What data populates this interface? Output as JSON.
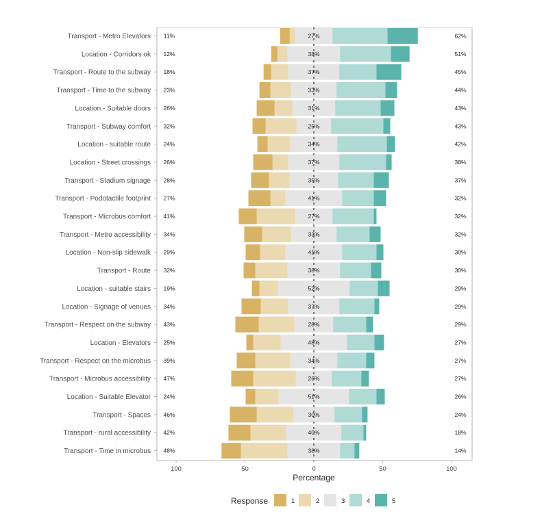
{
  "chart_data": {
    "type": "bar",
    "subtype": "diverging-stacked-likert",
    "title": "",
    "xlabel": "Percentage",
    "ylabel": "",
    "xlim": [
      -100,
      100
    ],
    "x_ticks": [
      -100,
      -50,
      0,
      50,
      100
    ],
    "x_tick_labels": [
      "100",
      "50",
      "0",
      "50",
      "100"
    ],
    "grid": true,
    "legend": {
      "title": "Response",
      "placement": "bottom",
      "entries": [
        "1",
        "2",
        "3",
        "4",
        "5"
      ]
    },
    "colors": {
      "1": "#d9b365",
      "2": "#ebd9b1",
      "3": "#e5e5e5",
      "4": "#afdad6",
      "5": "#5bb4ab"
    },
    "categories": [
      "Transport - Metro Elevators",
      "Location - Corridors ok",
      "Transport - Route to the subway",
      "Transport - Time to the subway",
      "Location - Suitable doors",
      "Transport - Subway comfort",
      "Location - suitable route",
      "Location - Street crossings",
      "Transport - Stadium signage",
      "Transport - Podotactile footprint",
      "Transport - Microbus comfort",
      "Transport - Metro accessibility",
      "Location - Non-slip sidewalk",
      "Transport - Route",
      "Location - suitable stairs",
      "Location - Signage of venues",
      "Transport - Respect on the subway",
      "Location - Elevators",
      "Transport - Respect on the microbus",
      "Transport - Microbus accessibility",
      "Location - Suitable Elevator",
      "Transport - Spaces",
      "Transport - rural accessibility",
      "Transport - Time in microbus"
    ],
    "series": [
      {
        "name": "1",
        "values": [
          7,
          4.5,
          5.5,
          8,
          13,
          9.5,
          7.5,
          14,
          13,
          16,
          13,
          13,
          10.5,
          8.5,
          5.5,
          14,
          17,
          5,
          13.5,
          16,
          7,
          19.5,
          16,
          14
        ]
      },
      {
        "name": "2",
        "values": [
          4,
          7.5,
          12.5,
          15,
          13,
          22.5,
          16.5,
          11.5,
          15,
          11,
          28,
          21,
          18.5,
          23.5,
          13.5,
          20,
          26,
          20,
          25.5,
          31,
          17,
          26.5,
          26,
          34
        ]
      },
      {
        "name": "3",
        "values": [
          27,
          38,
          37,
          33,
          31,
          25,
          34,
          37,
          35,
          41,
          27,
          33,
          41,
          38,
          52,
          37,
          28,
          48,
          34,
          26,
          51,
          30,
          40,
          38
        ]
      },
      {
        "name": "4",
        "values": [
          40,
          37,
          27,
          35.5,
          33,
          38,
          36,
          34,
          26,
          23,
          30,
          24,
          25,
          22.5,
          20.5,
          25.5,
          24,
          20,
          21,
          21.5,
          20,
          20,
          16,
          10.5
        ]
      },
      {
        "name": "5",
        "values": [
          22,
          13.5,
          18,
          8.5,
          10,
          5,
          6,
          4,
          11,
          9,
          2,
          8,
          5,
          7.5,
          8.5,
          3.5,
          5,
          7,
          6,
          5.5,
          6,
          4,
          2,
          3.5
        ]
      }
    ],
    "left_labels": [
      "11%",
      "12%",
      "18%",
      "23%",
      "26%",
      "32%",
      "24%",
      "26%",
      "28%",
      "27%",
      "41%",
      "34%",
      "29%",
      "32%",
      "19%",
      "34%",
      "43%",
      "25%",
      "39%",
      "47%",
      "24%",
      "46%",
      "42%",
      "48%"
    ],
    "center_labels": [
      "27%",
      "38%",
      "37%",
      "33%",
      "31%",
      "25%",
      "34%",
      "37%",
      "35%",
      "41%",
      "27%",
      "33%",
      "41%",
      "38%",
      "52%",
      "37%",
      "28%",
      "48%",
      "34%",
      "26%",
      "51%",
      "30%",
      "40%",
      "38%"
    ],
    "right_labels": [
      "62%",
      "51%",
      "45%",
      "44%",
      "43%",
      "43%",
      "42%",
      "38%",
      "37%",
      "32%",
      "32%",
      "32%",
      "30%",
      "30%",
      "29%",
      "29%",
      "29%",
      "27%",
      "27%",
      "27%",
      "26%",
      "24%",
      "18%",
      "14%"
    ]
  }
}
